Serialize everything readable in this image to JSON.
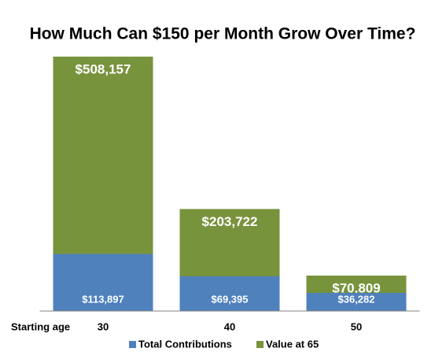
{
  "chart_data": {
    "type": "bar",
    "title": "How Much Can $150 per Month Grow Over Time?",
    "x_label": "Starting age",
    "categories": [
      "30",
      "40",
      "50"
    ],
    "series": [
      {
        "name": "Value at 65",
        "color": "#77933c",
        "values": [
          508157,
          203722,
          70809
        ],
        "value_labels": [
          "$508,157",
          "$203,722",
          "$70,809"
        ]
      },
      {
        "name": "Total Contributions",
        "color": "#4f81bd",
        "values": [
          113897,
          69395,
          36282
        ],
        "value_labels": [
          "$113,897",
          "$69,395",
          "$36,282"
        ]
      }
    ],
    "ylim": [
      0,
      530000
    ]
  }
}
